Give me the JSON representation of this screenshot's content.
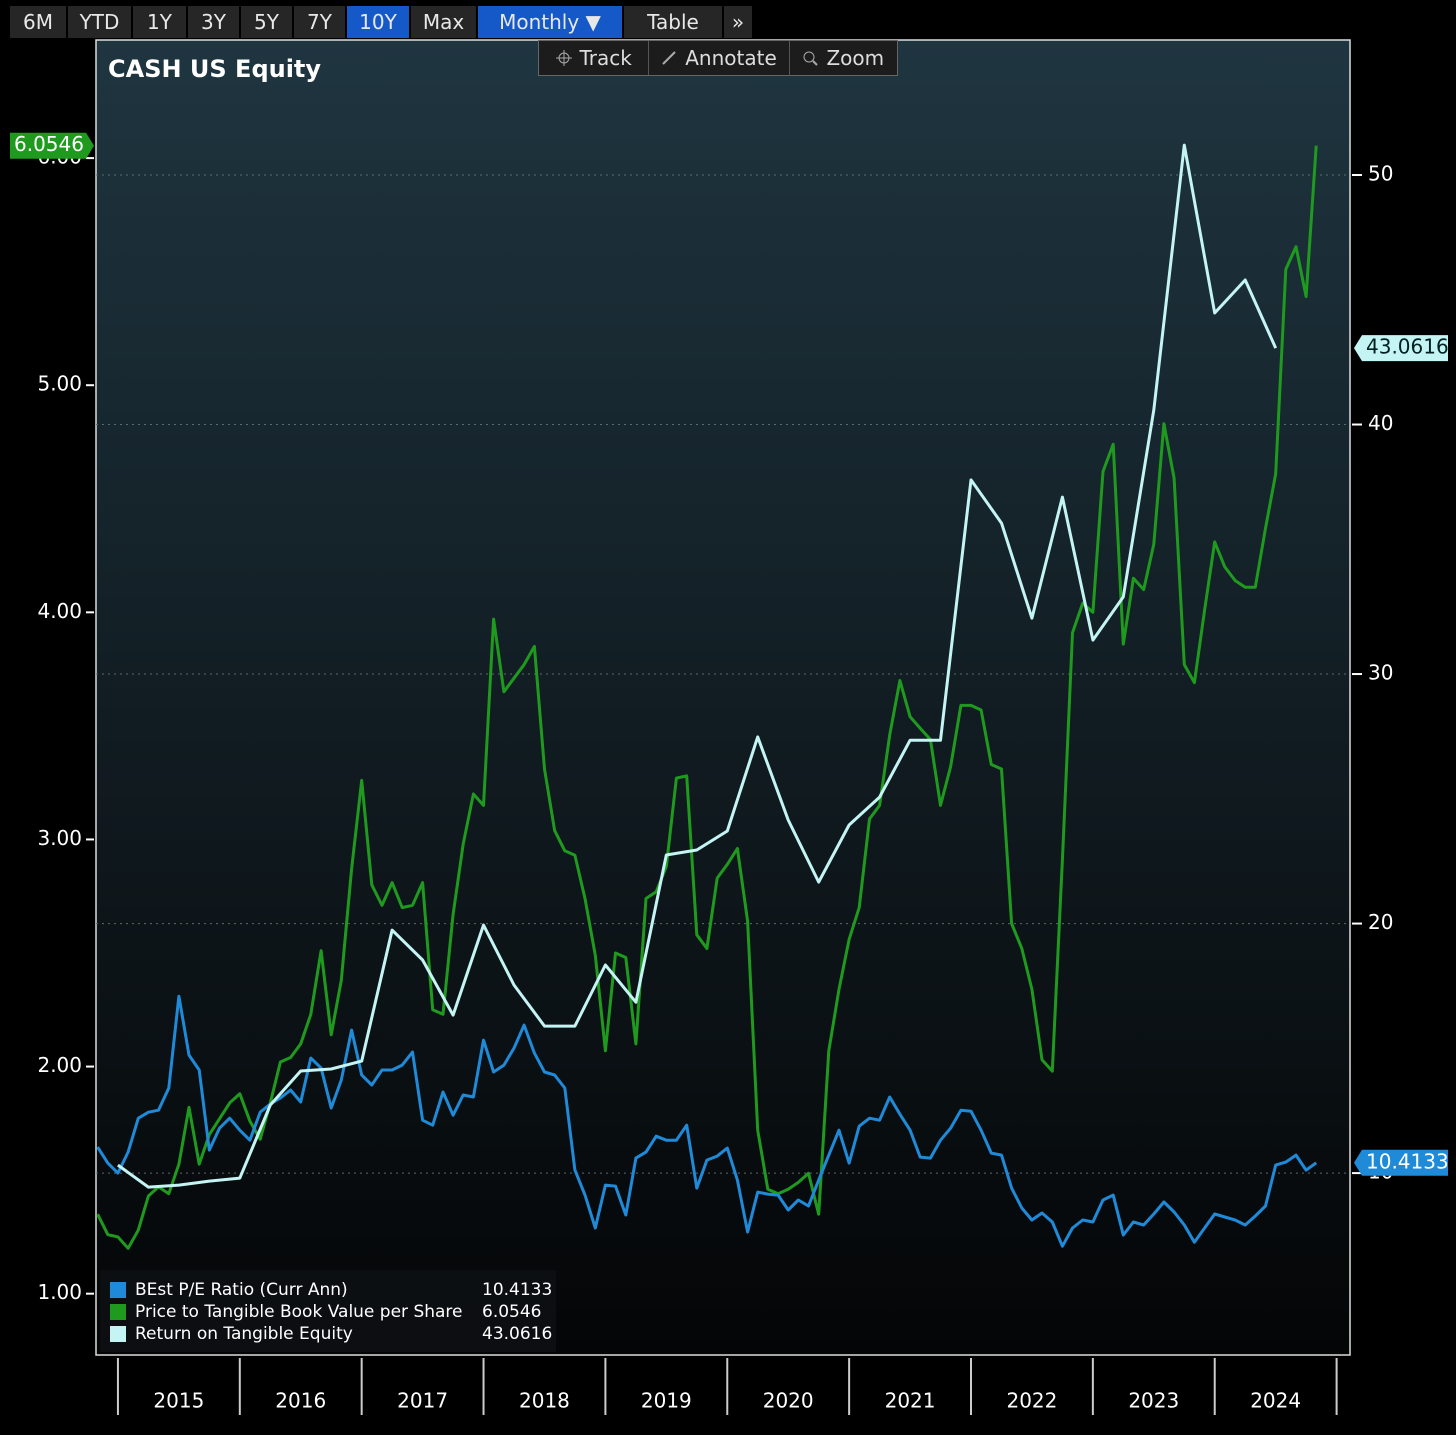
{
  "toolbar": {
    "buttons": [
      "6M",
      "YTD",
      "1Y",
      "3Y",
      "5Y",
      "7Y",
      "10Y",
      "Max",
      "Monthly ▼",
      "Table",
      "»"
    ],
    "tools": [
      "Track",
      "Annotate",
      "Zoom"
    ]
  },
  "chart_data": {
    "type": "line",
    "title": "CASH US Equity",
    "x": [
      2014.833,
      2014.917,
      2015,
      2015.083,
      2015.167,
      2015.25,
      2015.333,
      2015.417,
      2015.5,
      2015.583,
      2015.667,
      2015.75,
      2015.833,
      2015.917,
      2016,
      2016.083,
      2016.167,
      2016.25,
      2016.333,
      2016.417,
      2016.5,
      2016.583,
      2016.667,
      2016.75,
      2016.833,
      2016.917,
      2017,
      2017.083,
      2017.167,
      2017.25,
      2017.333,
      2017.417,
      2017.5,
      2017.583,
      2017.667,
      2017.75,
      2017.833,
      2017.917,
      2018,
      2018.083,
      2018.167,
      2018.25,
      2018.333,
      2018.417,
      2018.5,
      2018.583,
      2018.667,
      2018.75,
      2018.833,
      2018.917,
      2019,
      2019.083,
      2019.167,
      2019.25,
      2019.333,
      2019.417,
      2019.5,
      2019.583,
      2019.667,
      2019.75,
      2019.833,
      2019.917,
      2020,
      2020.083,
      2020.167,
      2020.25,
      2020.333,
      2020.417,
      2020.5,
      2020.583,
      2020.667,
      2020.75,
      2020.833,
      2020.917,
      2021,
      2021.083,
      2021.167,
      2021.25,
      2021.333,
      2021.417,
      2021.5,
      2021.583,
      2021.667,
      2021.75,
      2021.833,
      2021.917,
      2022,
      2022.083,
      2022.167,
      2022.25,
      2022.333,
      2022.417,
      2022.5,
      2022.583,
      2022.667,
      2022.75,
      2022.833,
      2022.917,
      2023,
      2023.083,
      2023.167,
      2023.25,
      2023.333,
      2023.417,
      2023.5,
      2023.583,
      2023.667,
      2023.75,
      2023.833,
      2023.917,
      2024,
      2024.083,
      2024.167,
      2024.25,
      2024.333,
      2024.417,
      2024.5,
      2024.583,
      2024.667,
      2024.75,
      2024.833
    ],
    "series": [
      {
        "name": "BEst P/E Ratio (Curr Ann)",
        "color": "#1f8ad8",
        "axis": "y2",
        "values": [
          11.04,
          10.4,
          10.0,
          10.84,
          12.2,
          12.44,
          12.52,
          13.41,
          17.09,
          14.73,
          14.13,
          10.92,
          11.8,
          12.2,
          11.72,
          11.32,
          12.44,
          12.77,
          13.01,
          13.33,
          12.85,
          14.61,
          14.21,
          12.61,
          13.73,
          15.73,
          13.93,
          13.53,
          14.13,
          14.13,
          14.33,
          14.85,
          12.12,
          11.92,
          13.25,
          12.32,
          13.13,
          13.05,
          15.33,
          14.05,
          14.33,
          15.01,
          15.93,
          14.81,
          14.05,
          13.93,
          13.41,
          10.12,
          9.12,
          7.8,
          9.52,
          9.48,
          8.32,
          10.6,
          10.84,
          11.48,
          11.32,
          11.32,
          11.92,
          9.4,
          10.52,
          10.68,
          11.0,
          9.72,
          7.64,
          9.24,
          9.16,
          9.12,
          8.52,
          8.92,
          8.68,
          9.72,
          10.72,
          11.72,
          10.4,
          11.88,
          12.2,
          12.12,
          13.05,
          12.36,
          11.72,
          10.64,
          10.6,
          11.32,
          11.8,
          12.52,
          12.48,
          11.72,
          10.8,
          10.72,
          9.4,
          8.6,
          8.12,
          8.4,
          8.04,
          7.07,
          7.8,
          8.12,
          8.04,
          8.92,
          9.12,
          7.52,
          8.04,
          7.92,
          8.36,
          8.84,
          8.44,
          7.92,
          7.23,
          7.8,
          8.36,
          8.24,
          8.12,
          7.92,
          8.28,
          8.68,
          10.32,
          10.44,
          10.72,
          10.12,
          10.4133
        ]
      },
      {
        "name": "Price to Tangible Book Value per Share",
        "color": "#1f9a1f",
        "axis": "y",
        "values": [
          1.35,
          1.26,
          1.25,
          1.2,
          1.28,
          1.43,
          1.47,
          1.44,
          1.57,
          1.82,
          1.57,
          1.7,
          1.77,
          1.84,
          1.88,
          1.76,
          1.68,
          1.84,
          2.02,
          2.04,
          2.1,
          2.23,
          2.51,
          2.14,
          2.38,
          2.87,
          3.26,
          2.8,
          2.71,
          2.81,
          2.7,
          2.71,
          2.81,
          2.25,
          2.23,
          2.67,
          2.98,
          3.2,
          3.15,
          3.97,
          3.65,
          3.71,
          3.77,
          3.85,
          3.31,
          3.04,
          2.95,
          2.93,
          2.74,
          2.49,
          2.07,
          2.5,
          2.48,
          2.1,
          2.74,
          2.77,
          2.88,
          3.27,
          3.28,
          2.58,
          2.52,
          2.83,
          2.89,
          2.96,
          2.64,
          1.72,
          1.46,
          1.44,
          1.46,
          1.49,
          1.53,
          1.35,
          2.07,
          2.34,
          2.56,
          2.7,
          3.09,
          3.15,
          3.46,
          3.7,
          3.54,
          3.49,
          3.44,
          3.15,
          3.32,
          3.59,
          3.59,
          3.57,
          3.33,
          3.31,
          2.63,
          2.52,
          2.34,
          2.03,
          1.98,
          2.91,
          3.91,
          4.04,
          4.0,
          4.62,
          4.74,
          3.86,
          4.15,
          4.1,
          4.3,
          4.83,
          4.59,
          3.77,
          3.69,
          4.01,
          4.31,
          4.2,
          4.14,
          4.11,
          4.11,
          4.37,
          4.61,
          5.51,
          5.61,
          5.39,
          6.0546
        ]
      },
      {
        "name": "Return on Tangible Equity",
        "color": "#c4f4f4",
        "axis": "y2",
        "x": [
          2015,
          2015.25,
          2015.5,
          2015.75,
          2016,
          2016.25,
          2016.5,
          2016.75,
          2017,
          2017.25,
          2017.5,
          2017.75,
          2018,
          2018.25,
          2018.5,
          2018.75,
          2019,
          2019.25,
          2019.5,
          2019.75,
          2020,
          2020.25,
          2020.5,
          2020.75,
          2021,
          2021.25,
          2021.5,
          2021.75,
          2022,
          2022.25,
          2022.5,
          2022.75,
          2023,
          2023.25,
          2023.5,
          2023.75,
          2024,
          2024.25,
          2024.5
        ],
        "values": [
          10.32,
          9.44,
          9.52,
          9.68,
          9.8,
          12.73,
          14.09,
          14.17,
          14.49,
          19.74,
          18.54,
          16.33,
          19.94,
          17.54,
          15.89,
          15.89,
          18.34,
          16.85,
          22.75,
          22.95,
          23.71,
          27.48,
          24.15,
          21.66,
          23.95,
          25.07,
          27.35,
          27.35,
          37.78,
          36.05,
          32.24,
          37.09,
          31.36,
          33.09,
          40.58,
          51.2,
          44.47,
          45.79,
          43.0616
        ]
      }
    ],
    "xlim": [
      2014.82,
      2025.11
    ],
    "xticks": [
      2015,
      2016,
      2017,
      2018,
      2019,
      2020,
      2021,
      2022,
      2023,
      2024
    ],
    "ylim": [
      0.73,
      6.52
    ],
    "yticks": [
      {
        "value": 1,
        "label": "1.00"
      },
      {
        "value": 2,
        "label": "2.00"
      },
      {
        "value": 3,
        "label": "3.00"
      },
      {
        "value": 4,
        "label": "4.00"
      },
      {
        "value": 5,
        "label": "5.00"
      },
      {
        "value": 6,
        "label": "6.00"
      }
    ],
    "y2lim": [
      2.71,
      55.41
    ],
    "y2ticks": [
      10,
      20,
      30,
      40,
      50
    ],
    "grid": true,
    "legend": "bottom-left"
  }
}
